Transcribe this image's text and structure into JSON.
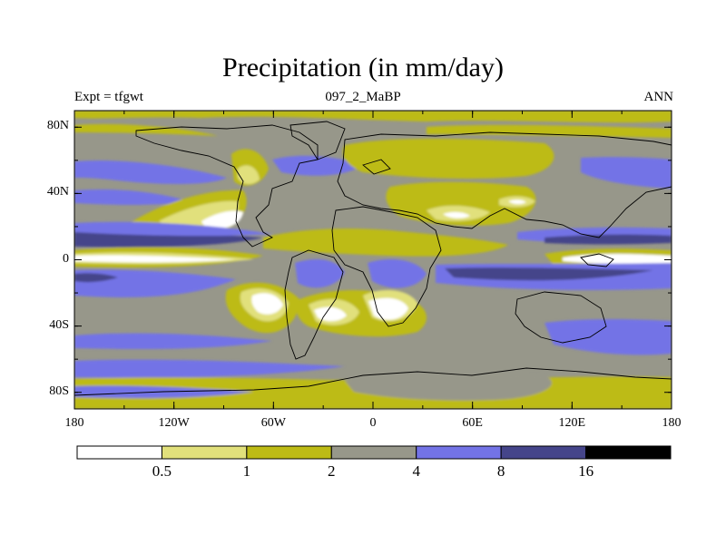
{
  "chart_data": {
    "type": "heatmap",
    "title": "Precipitation (in mm/day)",
    "left_string": "Expt = tfgwt",
    "center_string": "097_2_MaBP",
    "right_string": "ANN",
    "x_ticks": [
      {
        "value": -180,
        "label": "180"
      },
      {
        "value": -120,
        "label": "120W"
      },
      {
        "value": -60,
        "label": "60W"
      },
      {
        "value": 0,
        "label": "0"
      },
      {
        "value": 60,
        "label": "60E"
      },
      {
        "value": 120,
        "label": "120E"
      },
      {
        "value": 180,
        "label": "180"
      }
    ],
    "y_ticks": [
      {
        "value": 80,
        "label": "80N"
      },
      {
        "value": 40,
        "label": "40N"
      },
      {
        "value": 0,
        "label": "0"
      },
      {
        "value": -40,
        "label": "40S"
      },
      {
        "value": -80,
        "label": "80S"
      }
    ],
    "xlim": [
      -180,
      180
    ],
    "ylim": [
      -90,
      90
    ],
    "levels": [
      {
        "label": "0.5",
        "value": 0.5
      },
      {
        "label": "1",
        "value": 1
      },
      {
        "label": "2",
        "value": 2
      },
      {
        "label": "4",
        "value": 4
      },
      {
        "label": "8",
        "value": 8
      },
      {
        "label": "16",
        "value": 16
      }
    ],
    "colors": [
      "#ffffff",
      "#e1e07b",
      "#bdbb15",
      "#97978a",
      "#7373e6",
      "#45458a",
      "#000000"
    ]
  }
}
